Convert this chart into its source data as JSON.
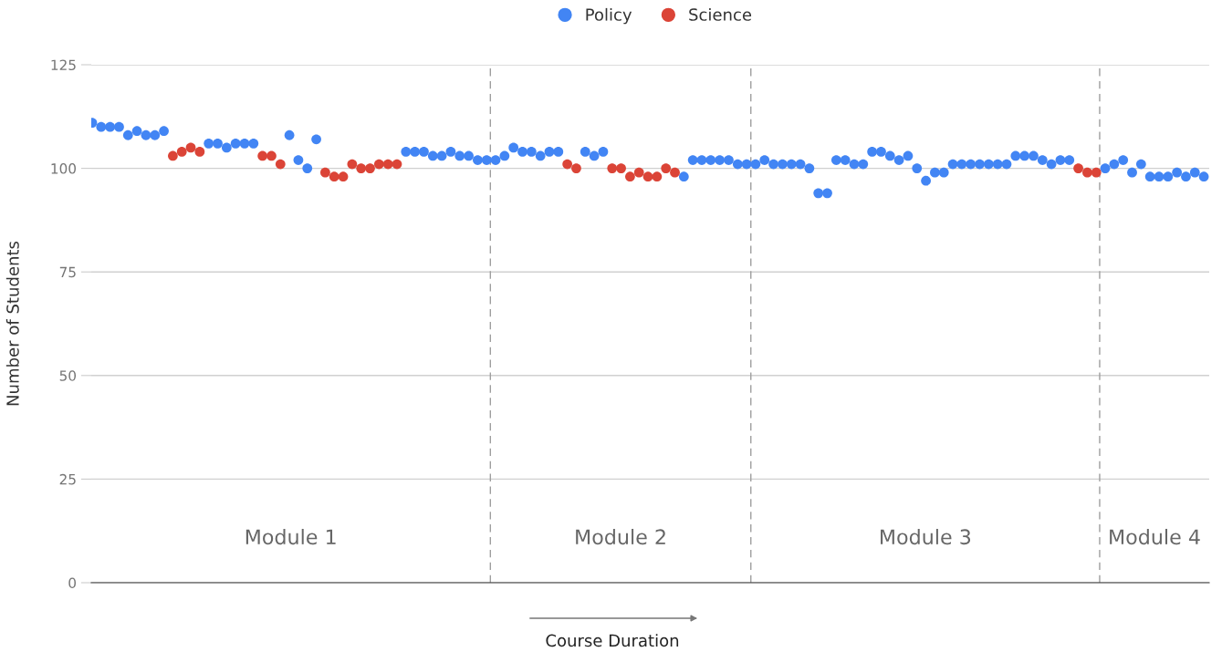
{
  "chart_data": {
    "type": "scatter",
    "ylabel": "Number of Students",
    "xlabel": "Course Duration",
    "categories": [
      null,
      null,
      null,
      null,
      null,
      null,
      null,
      null,
      null,
      null,
      null,
      null,
      null,
      null,
      null,
      null,
      null,
      null,
      null,
      null,
      null,
      null,
      null,
      null,
      null,
      null,
      null,
      null,
      null,
      null,
      null,
      null,
      null,
      null,
      null,
      null,
      null,
      null,
      null,
      null,
      null,
      null,
      null,
      null,
      null,
      null,
      null,
      null,
      null,
      null,
      null,
      null,
      null,
      null,
      null,
      null,
      null,
      null,
      null,
      null,
      null,
      null,
      null,
      null,
      null,
      null,
      null,
      null,
      null,
      null,
      null,
      null,
      null,
      null,
      null,
      null,
      null,
      null,
      null,
      null,
      null,
      null,
      null,
      null,
      null,
      null,
      null,
      null,
      null,
      null,
      null,
      null,
      null,
      null,
      null,
      null,
      null,
      null,
      null,
      null,
      null,
      null,
      null,
      null,
      null,
      null,
      null,
      null,
      null,
      null,
      null,
      null,
      null,
      null,
      null,
      null,
      null,
      null,
      null,
      null,
      null,
      null,
      null,
      null,
      null
    ],
    "series": [
      {
        "name": "Policy",
        "color": "#4285f4",
        "values": [
          111,
          110,
          110,
          110,
          108,
          109,
          108,
          108,
          109,
          null,
          null,
          null,
          null,
          106,
          106,
          105,
          106,
          106,
          106,
          null,
          null,
          null,
          108,
          102,
          100,
          107,
          null,
          null,
          null,
          null,
          null,
          null,
          null,
          null,
          null,
          104,
          104,
          104,
          103,
          103,
          104,
          103,
          103,
          102,
          102,
          102,
          103,
          105,
          104,
          104,
          103,
          104,
          104,
          null,
          null,
          104,
          103,
          104,
          null,
          null,
          null,
          null,
          null,
          null,
          null,
          null,
          98,
          102,
          102,
          102,
          102,
          102,
          101,
          101,
          101,
          102,
          101,
          101,
          101,
          101,
          100,
          94,
          94,
          102,
          102,
          101,
          101,
          104,
          104,
          103,
          102,
          103,
          100,
          97,
          99,
          99,
          101,
          101,
          101,
          101,
          101,
          101,
          101,
          103,
          103,
          103,
          102,
          101,
          102,
          102,
          null,
          null,
          null,
          100,
          101,
          102,
          99,
          101,
          98,
          98,
          98,
          99,
          98,
          99,
          98
        ]
      },
      {
        "name": "Science",
        "color": "#db4437",
        "values": [
          null,
          null,
          null,
          null,
          null,
          null,
          null,
          null,
          null,
          103,
          104,
          105,
          104,
          null,
          null,
          null,
          null,
          null,
          null,
          103,
          103,
          101,
          null,
          null,
          null,
          null,
          99,
          98,
          98,
          101,
          100,
          100,
          101,
          101,
          101,
          null,
          null,
          null,
          null,
          null,
          null,
          null,
          null,
          null,
          null,
          null,
          null,
          null,
          null,
          null,
          null,
          null,
          null,
          101,
          100,
          null,
          null,
          null,
          100,
          100,
          98,
          99,
          98,
          98,
          100,
          99,
          null,
          null,
          null,
          null,
          null,
          null,
          null,
          null,
          null,
          null,
          null,
          null,
          null,
          null,
          null,
          null,
          null,
          null,
          null,
          null,
          null,
          null,
          null,
          null,
          null,
          null,
          null,
          null,
          null,
          null,
          null,
          null,
          null,
          null,
          null,
          null,
          null,
          null,
          null,
          null,
          null,
          null,
          null,
          null,
          100,
          99,
          99,
          null,
          null,
          null,
          null,
          null,
          null,
          null,
          null,
          null,
          null,
          null,
          null
        ]
      }
    ],
    "ylim": [
      0,
      125
    ],
    "yticks": [
      0,
      25,
      50,
      75,
      100,
      125
    ],
    "tick_labels": "y",
    "grid": "y",
    "legend": "top",
    "marker": "circle",
    "annotations": [
      "Module 1",
      "Module 2",
      "Module 3",
      "Module 4"
    ]
  }
}
